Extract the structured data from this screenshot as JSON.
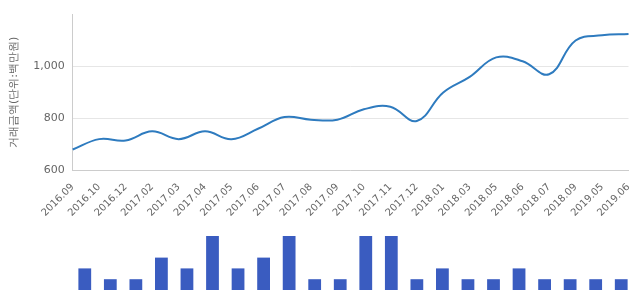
{
  "chart_data": [
    {
      "type": "line",
      "y_label": "거래금액(단위:백만원)",
      "categories": [
        "2016.09",
        "2016.10",
        "2016.12",
        "2017.02",
        "2017.03",
        "2017.04",
        "2017.05",
        "2017.06",
        "2017.07",
        "2017.08",
        "2017.09",
        "2017.10",
        "2017.11",
        "2017.12",
        "2018.01",
        "2018.03",
        "2018.05",
        "2018.06",
        "2018.07",
        "2018.09",
        "2019.05",
        "2019.06"
      ],
      "values": [
        680,
        720,
        715,
        750,
        720,
        750,
        720,
        760,
        805,
        795,
        795,
        835,
        845,
        790,
        900,
        960,
        1035,
        1020,
        970,
        1100,
        1120,
        1125
      ],
      "color": "#2e7bbf",
      "marker": "none",
      "ylim": [
        600,
        1200
      ],
      "yticks": [
        600,
        800,
        {
          "value": 1000,
          "label": "1,000"
        }
      ],
      "grid": true
    },
    {
      "type": "bar",
      "categories": [
        "2016.09",
        "2016.10",
        "2016.12",
        "2017.02",
        "2017.03",
        "2017.04",
        "2017.05",
        "2017.06",
        "2017.07",
        "2017.08",
        "2017.09",
        "2017.10",
        "2017.11",
        "2017.12",
        "2018.01",
        "2018.03",
        "2018.05",
        "2018.06",
        "2018.07",
        "2018.09",
        "2019.05",
        "2019.06"
      ],
      "values": [
        2,
        1,
        1,
        3,
        2,
        5,
        2,
        3,
        5,
        1,
        1,
        5,
        5,
        1,
        2,
        1,
        1,
        2,
        1,
        1,
        1,
        1
      ],
      "color": "#3a5cc0",
      "ylim": [
        0,
        5
      ],
      "tick_labels": false,
      "grid": false
    }
  ]
}
